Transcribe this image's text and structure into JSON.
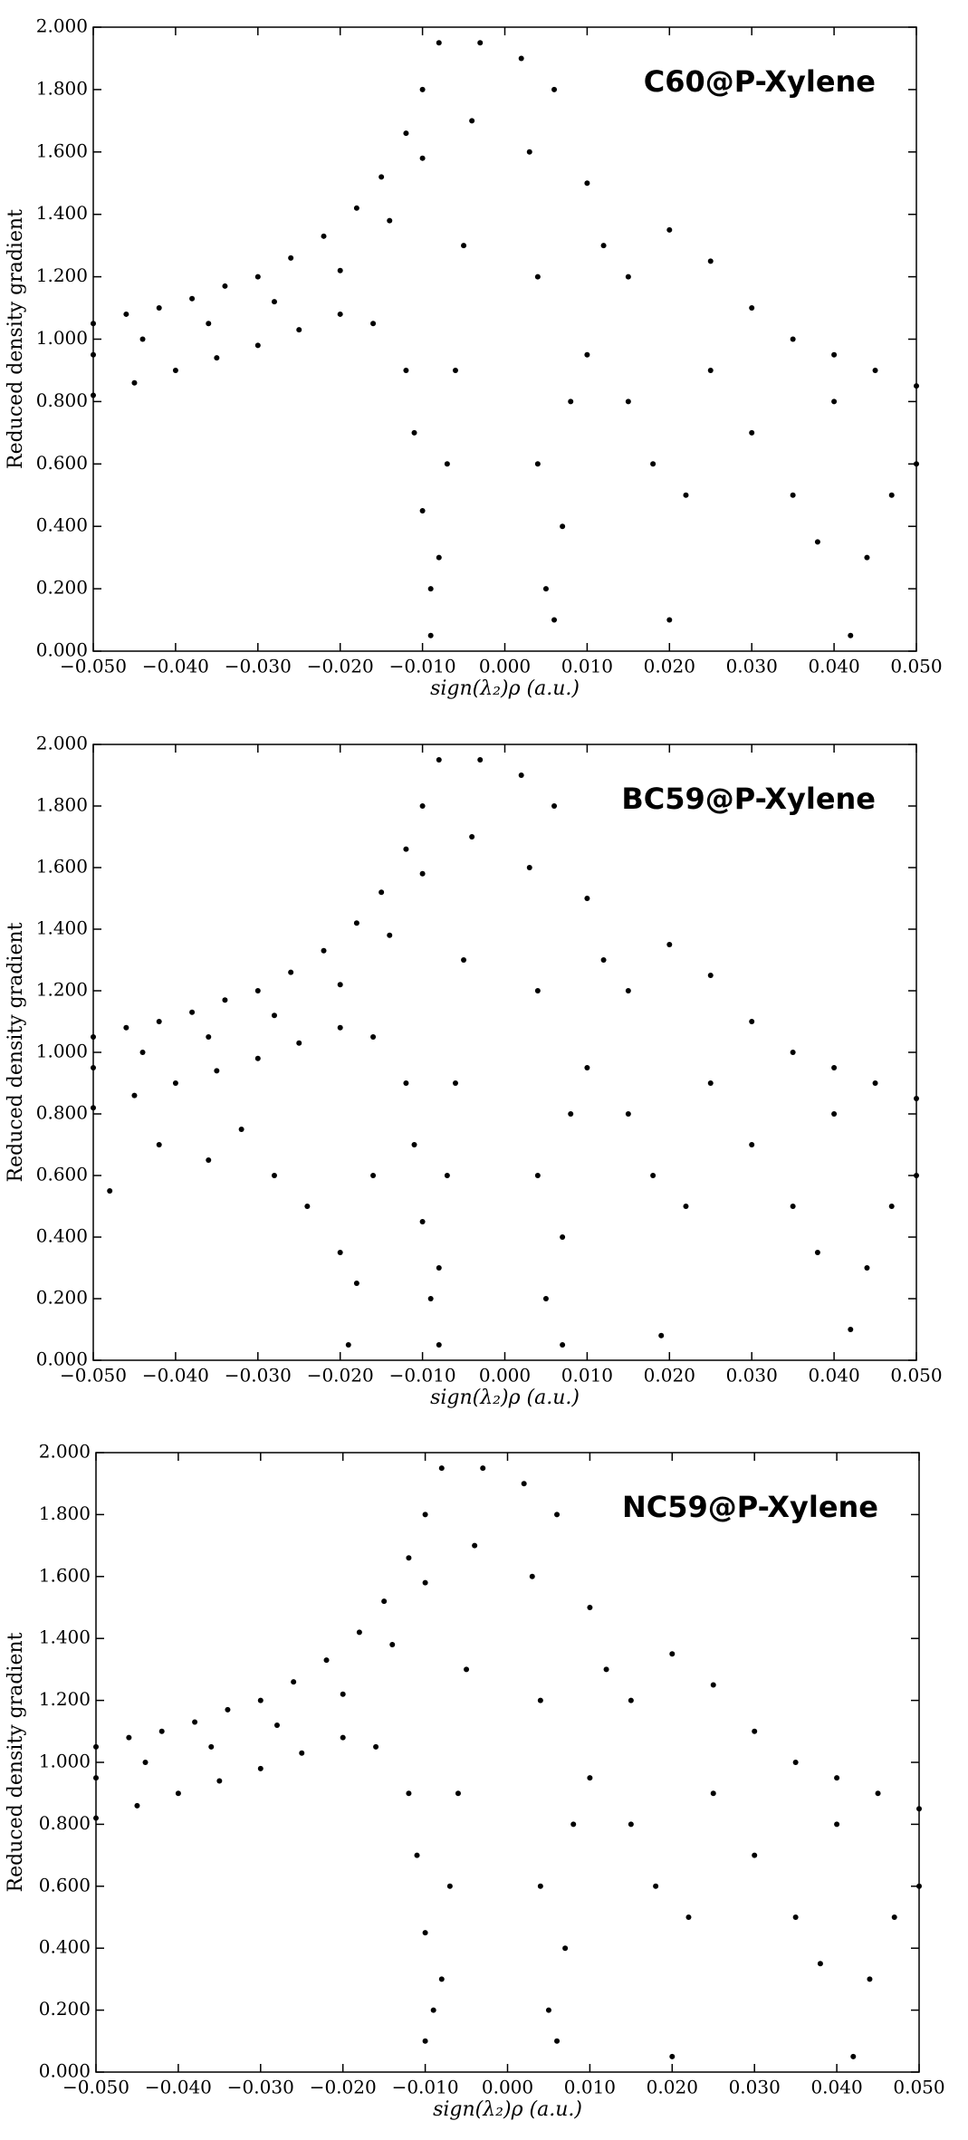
{
  "chart_data": [
    {
      "type": "scatter",
      "annotation": "C60@P-Xylene",
      "xlabel": "sign(λ₂)ρ (a.u.)",
      "ylabel": "Reduced density gradient",
      "color": "#000000",
      "xlim": [
        -0.05,
        0.05
      ],
      "ylim": [
        0,
        2
      ],
      "xticks": [
        {
          "value": -0.05,
          "label": "−0.050"
        },
        {
          "value": -0.04,
          "label": "−0.040"
        },
        {
          "value": -0.03,
          "label": "−0.030"
        },
        {
          "value": -0.02,
          "label": "−0.020"
        },
        {
          "value": -0.01,
          "label": "−0.010"
        },
        {
          "value": 0,
          "label": "0.000"
        },
        {
          "value": 0.01,
          "label": "0.010"
        },
        {
          "value": 0.02,
          "label": "0.020"
        },
        {
          "value": 0.03,
          "label": "0.030"
        },
        {
          "value": 0.04,
          "label": "0.040"
        },
        {
          "value": 0.05,
          "label": "0.050"
        }
      ],
      "yticks": [
        {
          "value": 0,
          "label": "0.000"
        },
        {
          "value": 0.2,
          "label": "0.200"
        },
        {
          "value": 0.4,
          "label": "0.400"
        },
        {
          "value": 0.6,
          "label": "0.600"
        },
        {
          "value": 0.8,
          "label": "0.800"
        },
        {
          "value": 1,
          "label": "1.000"
        },
        {
          "value": 1.2,
          "label": "1.200"
        },
        {
          "value": 1.4,
          "label": "1.400"
        },
        {
          "value": 1.6,
          "label": "1.600"
        },
        {
          "value": 1.8,
          "label": "1.800"
        },
        {
          "value": 2,
          "label": "2.000"
        }
      ],
      "x": [
        -0.05,
        -0.046,
        -0.042,
        -0.038,
        -0.034,
        -0.03,
        -0.026,
        -0.022,
        -0.018,
        -0.015,
        -0.012,
        -0.01,
        -0.008,
        -0.05,
        -0.044,
        -0.036,
        -0.028,
        -0.02,
        -0.014,
        -0.01,
        -0.05,
        -0.045,
        -0.04,
        -0.035,
        -0.03,
        -0.025,
        -0.02,
        -0.016,
        -0.012,
        -0.011,
        -0.01,
        -0.009,
        -0.009,
        -0.008,
        -0.007,
        -0.006,
        -0.005,
        -0.004,
        -0.003,
        0.002,
        0.003,
        0.004,
        0.004,
        0.005,
        0.006,
        0.007,
        0.008,
        0.006,
        0.01,
        0.012,
        0.015,
        0.018,
        0.02,
        0.022,
        0.025,
        0.02,
        0.025,
        0.03,
        0.035,
        0.04,
        0.045,
        0.05,
        0.03,
        0.035,
        0.038,
        0.042,
        0.044,
        0.047,
        0.05,
        0.015,
        0.01,
        0.04
      ],
      "y": [
        1.05,
        1.08,
        1.1,
        1.13,
        1.17,
        1.2,
        1.26,
        1.33,
        1.42,
        1.52,
        1.66,
        1.8,
        1.95,
        0.95,
        1.0,
        1.05,
        1.12,
        1.22,
        1.38,
        1.58,
        0.82,
        0.86,
        0.9,
        0.94,
        0.98,
        1.03,
        1.08,
        1.05,
        0.9,
        0.7,
        0.45,
        0.2,
        0.05,
        0.3,
        0.6,
        0.9,
        1.3,
        1.7,
        1.95,
        1.9,
        1.6,
        1.2,
        0.6,
        0.2,
        0.1,
        0.4,
        0.8,
        1.8,
        1.5,
        1.3,
        1.2,
        0.6,
        0.1,
        0.5,
        0.9,
        1.35,
        1.25,
        1.1,
        1.0,
        0.95,
        0.9,
        0.85,
        0.7,
        0.5,
        0.35,
        0.05,
        0.3,
        0.5,
        0.6,
        0.8,
        0.95,
        0.8
      ]
    },
    {
      "type": "scatter",
      "annotation": "BC59@P-Xylene",
      "xlabel": "sign(λ₂)ρ (a.u.)",
      "ylabel": "Reduced density gradient",
      "color": "#000000",
      "xlim": [
        -0.05,
        0.05
      ],
      "ylim": [
        0,
        2
      ],
      "xticks": [
        {
          "value": -0.05,
          "label": "−0.050"
        },
        {
          "value": -0.04,
          "label": "−0.040"
        },
        {
          "value": -0.03,
          "label": "−0.030"
        },
        {
          "value": -0.02,
          "label": "−0.020"
        },
        {
          "value": -0.01,
          "label": "−0.010"
        },
        {
          "value": 0,
          "label": "0.000"
        },
        {
          "value": 0.01,
          "label": "0.010"
        },
        {
          "value": 0.02,
          "label": "0.020"
        },
        {
          "value": 0.03,
          "label": "0.030"
        },
        {
          "value": 0.04,
          "label": "0.040"
        },
        {
          "value": 0.05,
          "label": "0.050"
        }
      ],
      "yticks": [
        {
          "value": 0,
          "label": "0.000"
        },
        {
          "value": 0.2,
          "label": "0.200"
        },
        {
          "value": 0.4,
          "label": "0.400"
        },
        {
          "value": 0.6,
          "label": "0.600"
        },
        {
          "value": 0.8,
          "label": "0.800"
        },
        {
          "value": 1,
          "label": "1.000"
        },
        {
          "value": 1.2,
          "label": "1.200"
        },
        {
          "value": 1.4,
          "label": "1.400"
        },
        {
          "value": 1.6,
          "label": "1.600"
        },
        {
          "value": 1.8,
          "label": "1.800"
        },
        {
          "value": 2,
          "label": "2.000"
        }
      ],
      "x": [
        -0.05,
        -0.046,
        -0.042,
        -0.038,
        -0.034,
        -0.03,
        -0.026,
        -0.022,
        -0.018,
        -0.015,
        -0.012,
        -0.01,
        -0.008,
        -0.05,
        -0.044,
        -0.036,
        -0.028,
        -0.02,
        -0.014,
        -0.01,
        -0.05,
        -0.045,
        -0.04,
        -0.035,
        -0.03,
        -0.025,
        -0.02,
        -0.016,
        -0.012,
        -0.011,
        -0.01,
        -0.009,
        -0.008,
        -0.008,
        -0.007,
        -0.006,
        -0.005,
        -0.004,
        -0.003,
        0.002,
        0.003,
        0.004,
        0.004,
        0.005,
        0.007,
        0.007,
        0.008,
        0.006,
        0.01,
        0.012,
        0.015,
        0.018,
        0.019,
        0.022,
        0.025,
        0.02,
        0.025,
        0.03,
        0.035,
        0.04,
        0.045,
        0.05,
        0.03,
        0.035,
        0.038,
        0.042,
        0.044,
        0.047,
        0.05,
        0.015,
        0.01,
        0.04,
        -0.048,
        -0.042,
        -0.036,
        -0.032,
        -0.028,
        -0.024,
        -0.02,
        -0.019,
        -0.018,
        -0.016
      ],
      "y": [
        1.05,
        1.08,
        1.1,
        1.13,
        1.17,
        1.2,
        1.26,
        1.33,
        1.42,
        1.52,
        1.66,
        1.8,
        1.95,
        0.95,
        1.0,
        1.05,
        1.12,
        1.22,
        1.38,
        1.58,
        0.82,
        0.86,
        0.9,
        0.94,
        0.98,
        1.03,
        1.08,
        1.05,
        0.9,
        0.7,
        0.45,
        0.2,
        0.05,
        0.3,
        0.6,
        0.9,
        1.3,
        1.7,
        1.95,
        1.9,
        1.6,
        1.2,
        0.6,
        0.2,
        0.05,
        0.4,
        0.8,
        1.8,
        1.5,
        1.3,
        1.2,
        0.6,
        0.08,
        0.5,
        0.9,
        1.35,
        1.25,
        1.1,
        1.0,
        0.95,
        0.9,
        0.85,
        0.7,
        0.5,
        0.35,
        0.1,
        0.3,
        0.5,
        0.6,
        0.8,
        0.95,
        0.8,
        0.55,
        0.7,
        0.65,
        0.75,
        0.6,
        0.5,
        0.35,
        0.05,
        0.25,
        0.6
      ]
    },
    {
      "type": "scatter",
      "annotation": "NC59@P-Xylene",
      "xlabel": "sign(λ₂)ρ (a.u.)",
      "ylabel": "Reduced density gradient",
      "color": "#000000",
      "xlim": [
        -0.05,
        0.05
      ],
      "ylim": [
        0,
        2
      ],
      "xticks": [
        {
          "value": -0.05,
          "label": "−0.050"
        },
        {
          "value": -0.04,
          "label": "−0.040"
        },
        {
          "value": -0.03,
          "label": "−0.030"
        },
        {
          "value": -0.02,
          "label": "−0.020"
        },
        {
          "value": -0.01,
          "label": "−0.010"
        },
        {
          "value": 0,
          "label": "0.000"
        },
        {
          "value": 0.01,
          "label": "0.010"
        },
        {
          "value": 0.02,
          "label": "0.020"
        },
        {
          "value": 0.03,
          "label": "0.030"
        },
        {
          "value": 0.04,
          "label": "0.040"
        },
        {
          "value": 0.05,
          "label": "0.050"
        }
      ],
      "yticks": [
        {
          "value": 0,
          "label": "0.000"
        },
        {
          "value": 0.2,
          "label": "0.200"
        },
        {
          "value": 0.4,
          "label": "0.400"
        },
        {
          "value": 0.6,
          "label": "0.600"
        },
        {
          "value": 0.8,
          "label": "0.800"
        },
        {
          "value": 1,
          "label": "1.000"
        },
        {
          "value": 1.2,
          "label": "1.200"
        },
        {
          "value": 1.4,
          "label": "1.400"
        },
        {
          "value": 1.6,
          "label": "1.600"
        },
        {
          "value": 1.8,
          "label": "1.800"
        },
        {
          "value": 2,
          "label": "2.000"
        }
      ],
      "x": [
        -0.05,
        -0.046,
        -0.042,
        -0.038,
        -0.034,
        -0.03,
        -0.026,
        -0.022,
        -0.018,
        -0.015,
        -0.012,
        -0.01,
        -0.008,
        -0.05,
        -0.044,
        -0.036,
        -0.028,
        -0.02,
        -0.014,
        -0.01,
        -0.05,
        -0.045,
        -0.04,
        -0.035,
        -0.03,
        -0.025,
        -0.02,
        -0.016,
        -0.012,
        -0.011,
        -0.01,
        -0.01,
        -0.009,
        -0.008,
        -0.007,
        -0.006,
        -0.005,
        -0.004,
        -0.003,
        0.002,
        0.003,
        0.004,
        0.004,
        0.005,
        0.006,
        0.007,
        0.008,
        0.006,
        0.01,
        0.012,
        0.015,
        0.018,
        0.02,
        0.022,
        0.025,
        0.02,
        0.025,
        0.03,
        0.035,
        0.04,
        0.045,
        0.05,
        0.03,
        0.035,
        0.038,
        0.042,
        0.044,
        0.047,
        0.05,
        0.015,
        0.01,
        0.04
      ],
      "y": [
        1.05,
        1.08,
        1.1,
        1.13,
        1.17,
        1.2,
        1.26,
        1.33,
        1.42,
        1.52,
        1.66,
        1.8,
        1.95,
        0.95,
        1.0,
        1.05,
        1.12,
        1.22,
        1.38,
        1.58,
        0.82,
        0.86,
        0.9,
        0.94,
        0.98,
        1.03,
        1.08,
        1.05,
        0.9,
        0.7,
        0.45,
        0.1,
        0.2,
        0.3,
        0.6,
        0.9,
        1.3,
        1.7,
        1.95,
        1.9,
        1.6,
        1.2,
        0.6,
        0.2,
        0.1,
        0.4,
        0.8,
        1.8,
        1.5,
        1.3,
        1.2,
        0.6,
        0.05,
        0.5,
        0.9,
        1.35,
        1.25,
        1.1,
        1.0,
        0.95,
        0.9,
        0.85,
        0.7,
        0.5,
        0.35,
        0.05,
        0.3,
        0.5,
        0.6,
        0.8,
        0.95,
        0.8
      ]
    }
  ]
}
